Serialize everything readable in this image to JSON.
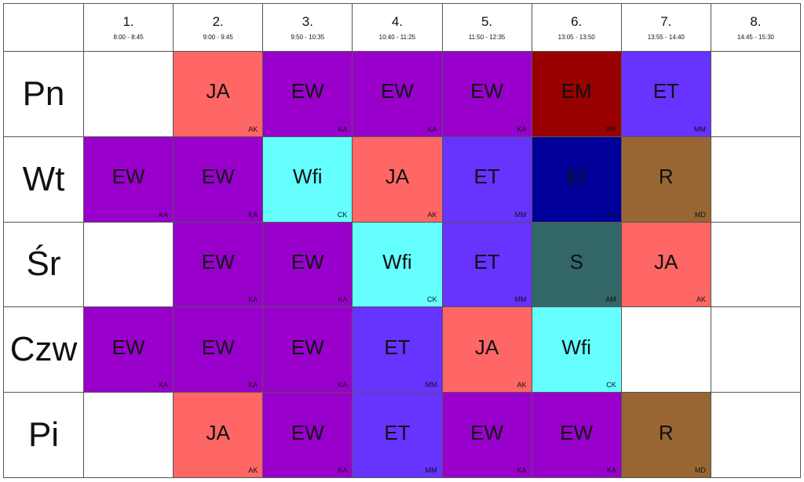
{
  "periods": [
    {
      "num": "1.",
      "time": "8:00 - 8:45"
    },
    {
      "num": "2.",
      "time": "9:00 - 9:45"
    },
    {
      "num": "3.",
      "time": "9:50 - 10:35"
    },
    {
      "num": "4.",
      "time": "10:40 - 11:25"
    },
    {
      "num": "5.",
      "time": "11:50 - 12:35"
    },
    {
      "num": "6.",
      "time": "13:05 - 13:50"
    },
    {
      "num": "7.",
      "time": "13:55 - 14:40"
    },
    {
      "num": "8.",
      "time": "14:45 - 15:30"
    }
  ],
  "subject_colors": {
    "EW": "#9900cc",
    "JA": "#ff6666",
    "ET": "#6633ff",
    "EM": "#990000",
    "Wfi": "#66ffff",
    "EI": "#000099",
    "R": "#996633",
    "S": "#336666"
  },
  "days": [
    {
      "name": "Pn",
      "lessons": [
        null,
        {
          "subject": "JA",
          "teacher": "AK"
        },
        {
          "subject": "EW",
          "teacher": "KA"
        },
        {
          "subject": "EW",
          "teacher": "KA"
        },
        {
          "subject": "EW",
          "teacher": "KA"
        },
        {
          "subject": "EM",
          "teacher": "RR"
        },
        {
          "subject": "ET",
          "teacher": "MM"
        },
        null
      ]
    },
    {
      "name": "Wt",
      "lessons": [
        {
          "subject": "EW",
          "teacher": "KA"
        },
        {
          "subject": "EW",
          "teacher": "KA"
        },
        {
          "subject": "Wfi",
          "teacher": "CK"
        },
        {
          "subject": "JA",
          "teacher": "AK"
        },
        {
          "subject": "ET",
          "teacher": "MM"
        },
        {
          "subject": "EI",
          "teacher": "KK"
        },
        {
          "subject": "R",
          "teacher": "MD"
        },
        null
      ]
    },
    {
      "name": "Śr",
      "lessons": [
        null,
        {
          "subject": "EW",
          "teacher": "KA"
        },
        {
          "subject": "EW",
          "teacher": "KA"
        },
        {
          "subject": "Wfi",
          "teacher": "CK"
        },
        {
          "subject": "ET",
          "teacher": "MM"
        },
        {
          "subject": "S",
          "teacher": "AM"
        },
        {
          "subject": "JA",
          "teacher": "AK"
        },
        null
      ]
    },
    {
      "name": "Czw",
      "lessons": [
        {
          "subject": "EW",
          "teacher": "KA"
        },
        {
          "subject": "EW",
          "teacher": "KA"
        },
        {
          "subject": "EW",
          "teacher": "KA"
        },
        {
          "subject": "ET",
          "teacher": "MM"
        },
        {
          "subject": "JA",
          "teacher": "AK"
        },
        {
          "subject": "Wfi",
          "teacher": "CK"
        },
        null,
        null
      ]
    },
    {
      "name": "Pi",
      "lessons": [
        null,
        {
          "subject": "JA",
          "teacher": "AK"
        },
        {
          "subject": "EW",
          "teacher": "KA"
        },
        {
          "subject": "ET",
          "teacher": "MM"
        },
        {
          "subject": "EW",
          "teacher": "KA"
        },
        {
          "subject": "EW",
          "teacher": "KA"
        },
        {
          "subject": "R",
          "teacher": "MD"
        },
        null
      ]
    }
  ]
}
